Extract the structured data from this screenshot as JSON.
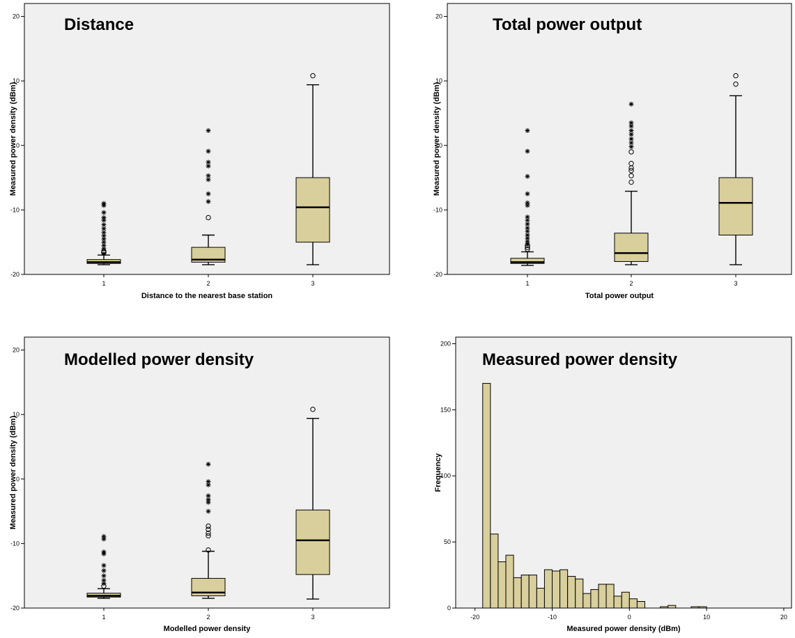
{
  "colors": {
    "plot_bg": "#f0f0f0",
    "box_fill": "#d8cf9c",
    "bar_fill": "#d8cf9c",
    "stroke": "#000000"
  },
  "chart_data": [
    {
      "id": "distance",
      "type": "box",
      "title": "Distance",
      "xlabel": "Distance to the nearest base station",
      "ylabel": "Measured power density (dBm)",
      "categories": [
        "1",
        "2",
        "3"
      ],
      "ylim": [
        -20,
        22
      ],
      "yticks": [
        -20,
        -10,
        0,
        10,
        20
      ],
      "grid": false,
      "boxes": [
        {
          "category": "1",
          "whisker_low": -18.5,
          "q1": -18.3,
          "median": -18.1,
          "q3": -17.7,
          "whisker_high": -17.0,
          "outliers_circle": [
            -16.6,
            -16.4
          ],
          "outliers_star": [
            -16.8,
            -16.0,
            -15.5,
            -15.0,
            -14.5,
            -14.0,
            -13.5,
            -12.9,
            -12.3,
            -11.6,
            -11.2,
            -10.4,
            -9.3,
            -9.0
          ]
        },
        {
          "category": "2",
          "whisker_low": -18.5,
          "q1": -18.1,
          "median": -17.7,
          "q3": -15.8,
          "whisker_high": -13.9,
          "outliers_circle": [
            -11.2
          ],
          "outliers_star": [
            -8.7,
            -7.5,
            -5.3,
            -4.7,
            -3.2,
            -2.6,
            -0.9,
            2.3
          ]
        },
        {
          "category": "3",
          "whisker_low": -18.5,
          "q1": -15.0,
          "median": -9.6,
          "q3": -5.0,
          "whisker_high": 9.4,
          "outliers_circle": [
            10.8
          ],
          "outliers_star": []
        }
      ]
    },
    {
      "id": "total-power",
      "type": "box",
      "title": "Total power output",
      "xlabel": "Total power output",
      "ylabel": "Measured power density (dBm)",
      "categories": [
        "1",
        "2",
        "3"
      ],
      "ylim": [
        -20,
        22
      ],
      "yticks": [
        -20,
        -10,
        0,
        10,
        20
      ],
      "grid": false,
      "boxes": [
        {
          "category": "1",
          "whisker_low": -18.6,
          "q1": -18.3,
          "median": -18.1,
          "q3": -17.5,
          "whisker_high": -16.5,
          "outliers_circle": [
            -16.1,
            -15.8,
            -15.5
          ],
          "outliers_star": [
            -15.3,
            -14.9,
            -14.4,
            -13.9,
            -13.3,
            -12.8,
            -12.2,
            -11.6,
            -11.1,
            -9.3,
            -8.9,
            -7.5,
            -4.8,
            -0.9,
            2.3
          ]
        },
        {
          "category": "2",
          "whisker_low": -18.5,
          "q1": -18.0,
          "median": -16.7,
          "q3": -13.6,
          "whisker_high": -7.1,
          "outliers_circle": [
            -5.7,
            -4.7,
            -3.9,
            -3.5,
            -2.8,
            -1.0
          ],
          "outliers_star": [
            -0.2,
            0.4,
            1.0,
            1.7,
            2.3,
            3.0,
            3.5,
            6.4
          ]
        },
        {
          "category": "3",
          "whisker_low": -18.5,
          "q1": -13.9,
          "median": -8.9,
          "q3": -5.0,
          "whisker_high": 7.7,
          "outliers_circle": [
            9.5,
            10.8
          ],
          "outliers_star": []
        }
      ]
    },
    {
      "id": "modelled-power",
      "type": "box",
      "title": "Modelled power density",
      "xlabel": "Modelled power density",
      "ylabel": "Measured power density (dBm)",
      "categories": [
        "1",
        "2",
        "3"
      ],
      "ylim": [
        -20,
        22
      ],
      "yticks": [
        -20,
        -10,
        0,
        10,
        20
      ],
      "grid": false,
      "boxes": [
        {
          "category": "1",
          "whisker_low": -18.5,
          "q1": -18.3,
          "median": -18.1,
          "q3": -17.7,
          "whisker_high": -17.0,
          "outliers_circle": [
            -16.6
          ],
          "outliers_star": [
            -16.2,
            -15.7,
            -15.0,
            -14.2,
            -13.4,
            -11.6,
            -11.3,
            -9.3,
            -8.9
          ]
        },
        {
          "category": "2",
          "whisker_low": -18.5,
          "q1": -18.1,
          "median": -17.6,
          "q3": -15.4,
          "whisker_high": -11.2,
          "outliers_circle": [
            -11.0,
            -8.8,
            -8.4,
            -7.8,
            -7.3
          ],
          "outliers_star": [
            -5.0,
            -3.6,
            -3.2,
            -2.6,
            -0.9,
            -0.4,
            2.3
          ]
        },
        {
          "category": "3",
          "whisker_low": -18.6,
          "q1": -14.8,
          "median": -9.5,
          "q3": -4.8,
          "whisker_high": 9.4,
          "outliers_circle": [
            10.8
          ],
          "outliers_star": []
        }
      ]
    },
    {
      "id": "measured-hist",
      "type": "bar",
      "title": "Measured power density",
      "xlabel": "Measured power density (dBm)",
      "ylabel": "Frequency",
      "xlim": [
        -22.5,
        21
      ],
      "ylim": [
        0,
        205
      ],
      "xticks": [
        -20,
        -10,
        0,
        10,
        20
      ],
      "yticks": [
        0,
        50,
        100,
        150,
        200
      ],
      "grid": false,
      "bin_width": 1,
      "bins": [
        {
          "x": -19,
          "count": 170
        },
        {
          "x": -18,
          "count": 56
        },
        {
          "x": -17,
          "count": 35
        },
        {
          "x": -16,
          "count": 40
        },
        {
          "x": -15,
          "count": 23
        },
        {
          "x": -14,
          "count": 25
        },
        {
          "x": -13,
          "count": 25
        },
        {
          "x": -12,
          "count": 15
        },
        {
          "x": -11,
          "count": 29
        },
        {
          "x": -10,
          "count": 28
        },
        {
          "x": -9,
          "count": 29
        },
        {
          "x": -8,
          "count": 24
        },
        {
          "x": -7,
          "count": 22
        },
        {
          "x": -6,
          "count": 11
        },
        {
          "x": -5,
          "count": 14
        },
        {
          "x": -4,
          "count": 18
        },
        {
          "x": -3,
          "count": 18
        },
        {
          "x": -2,
          "count": 9
        },
        {
          "x": -1,
          "count": 12
        },
        {
          "x": 0,
          "count": 7
        },
        {
          "x": 1,
          "count": 5
        },
        {
          "x": 2,
          "count": 0
        },
        {
          "x": 3,
          "count": 0
        },
        {
          "x": 4,
          "count": 1
        },
        {
          "x": 5,
          "count": 2
        },
        {
          "x": 6,
          "count": 0
        },
        {
          "x": 7,
          "count": 0
        },
        {
          "x": 8,
          "count": 1
        },
        {
          "x": 9,
          "count": 1
        }
      ]
    }
  ]
}
